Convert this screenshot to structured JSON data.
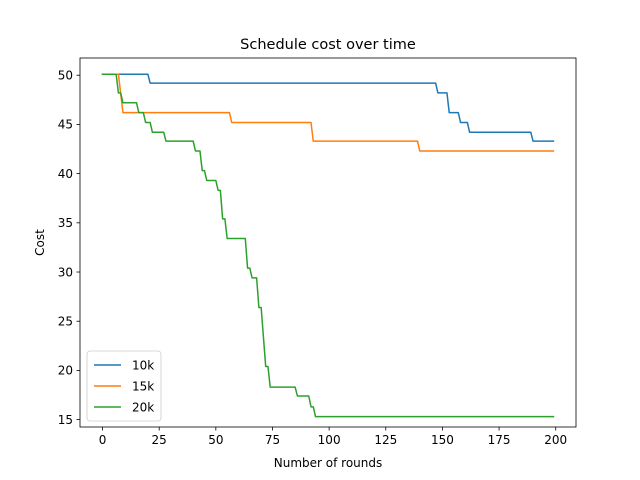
{
  "chart_data": {
    "type": "line",
    "title": "Schedule cost over time",
    "xlabel": "Number of rounds",
    "ylabel": "Cost",
    "xlim": [
      -9.95,
      208.95
    ],
    "ylim": [
      14.25,
      51.75
    ],
    "xticks": [
      0,
      25,
      50,
      75,
      100,
      125,
      150,
      175,
      200
    ],
    "yticks": [
      15,
      20,
      25,
      30,
      35,
      40,
      45,
      50
    ],
    "grid": false,
    "legend_position": "lower-left",
    "series": [
      {
        "name": "10k",
        "color": "#1f77b4",
        "points": [
          [
            0,
            50.1
          ],
          [
            20,
            50.1
          ],
          [
            21,
            49.2
          ],
          [
            147,
            49.2
          ],
          [
            148,
            48.2
          ],
          [
            152,
            48.2
          ],
          [
            153,
            46.2
          ],
          [
            157,
            46.2
          ],
          [
            158,
            45.2
          ],
          [
            161,
            45.2
          ],
          [
            162,
            44.2
          ],
          [
            189,
            44.2
          ],
          [
            190,
            43.3
          ],
          [
            199,
            43.3
          ]
        ]
      },
      {
        "name": "15k",
        "color": "#ff7f0e",
        "points": [
          [
            0,
            50.1
          ],
          [
            7,
            50.1
          ],
          [
            9,
            46.2
          ],
          [
            56,
            46.2
          ],
          [
            57,
            45.2
          ],
          [
            92,
            45.2
          ],
          [
            93,
            43.3
          ],
          [
            139,
            43.3
          ],
          [
            140,
            42.3
          ],
          [
            199,
            42.3
          ]
        ]
      },
      {
        "name": "20k",
        "color": "#2ca02c",
        "points": [
          [
            0,
            50.1
          ],
          [
            6,
            50.1
          ],
          [
            7,
            48.2
          ],
          [
            8,
            48.2
          ],
          [
            9,
            47.2
          ],
          [
            15,
            47.2
          ],
          [
            16,
            46.2
          ],
          [
            18,
            46.2
          ],
          [
            19,
            45.2
          ],
          [
            21,
            45.2
          ],
          [
            22,
            44.2
          ],
          [
            27,
            44.2
          ],
          [
            28,
            43.3
          ],
          [
            40,
            43.3
          ],
          [
            41,
            42.3
          ],
          [
            43,
            42.3
          ],
          [
            44,
            40.3
          ],
          [
            45,
            40.3
          ],
          [
            46,
            39.3
          ],
          [
            50,
            39.3
          ],
          [
            51,
            38.3
          ],
          [
            52,
            38.3
          ],
          [
            53,
            35.4
          ],
          [
            54,
            35.4
          ],
          [
            55,
            33.4
          ],
          [
            63,
            33.4
          ],
          [
            64,
            30.4
          ],
          [
            65,
            30.4
          ],
          [
            66,
            29.4
          ],
          [
            68,
            29.4
          ],
          [
            69,
            26.4
          ],
          [
            70,
            26.4
          ],
          [
            71,
            23.4
          ],
          [
            72,
            20.4
          ],
          [
            73,
            20.4
          ],
          [
            74,
            18.3
          ],
          [
            85,
            18.3
          ],
          [
            86,
            17.4
          ],
          [
            91,
            17.4
          ],
          [
            92,
            16.3
          ],
          [
            93,
            16.3
          ],
          [
            94,
            15.3
          ],
          [
            199,
            15.3
          ]
        ]
      }
    ]
  }
}
